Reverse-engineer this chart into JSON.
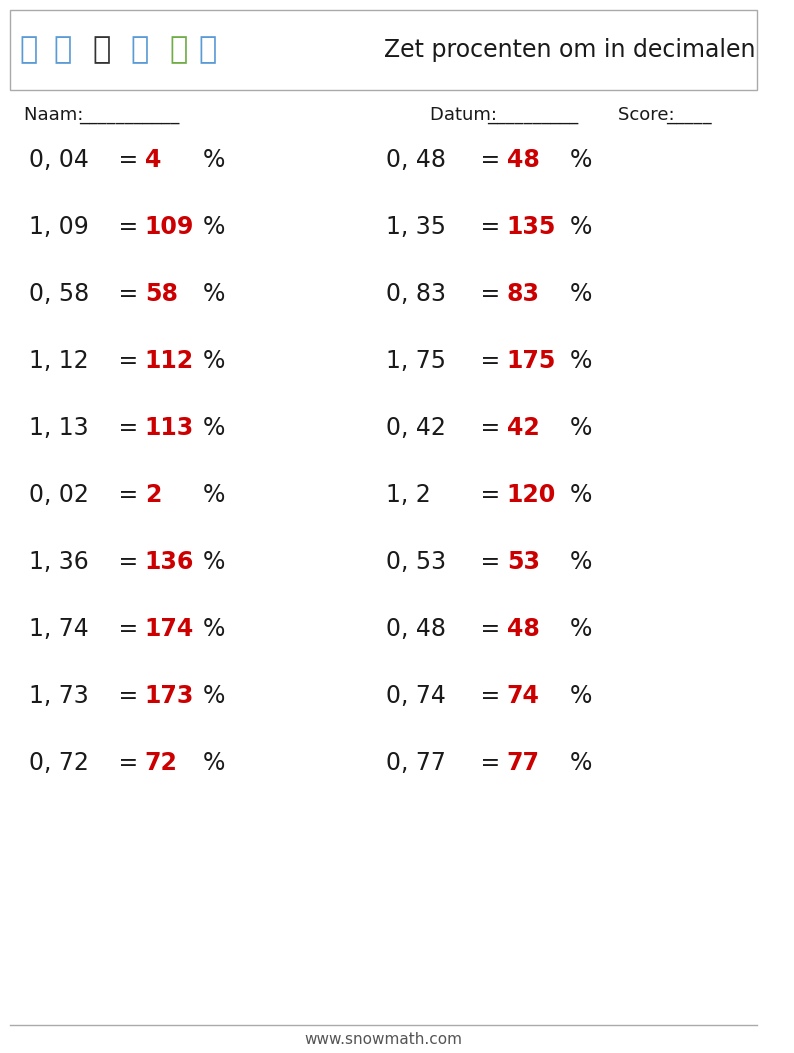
{
  "title": "Zet procenten om in decimalen",
  "naam_label": "Naam: ",
  "datum_label": "Datum: ",
  "score_label": "Score: ",
  "naam_line": "___________",
  "datum_line": "__________",
  "score_line": "_____",
  "footer": "www.snowmath.com",
  "left_questions": [
    {
      "decimal": "0, 04",
      "equals": " = ",
      "answer": "4",
      "suffix": "%"
    },
    {
      "decimal": "1, 09",
      "equals": " = ",
      "answer": "109",
      "suffix": "%"
    },
    {
      "decimal": "0, 58",
      "equals": " = ",
      "answer": "58",
      "suffix": "%"
    },
    {
      "decimal": "1, 12",
      "equals": " = ",
      "answer": "112",
      "suffix": "%"
    },
    {
      "decimal": "1, 13",
      "equals": " = ",
      "answer": "113",
      "suffix": "%"
    },
    {
      "decimal": "0, 02",
      "equals": " = ",
      "answer": "2",
      "suffix": "%"
    },
    {
      "decimal": "1, 36",
      "equals": " = ",
      "answer": "136",
      "suffix": "%"
    },
    {
      "decimal": "1, 74",
      "equals": " = ",
      "answer": "174",
      "suffix": "%"
    },
    {
      "decimal": "1, 73",
      "equals": " = ",
      "answer": "173",
      "suffix": "%"
    },
    {
      "decimal": "0, 72",
      "equals": " = ",
      "answer": "72",
      "suffix": "%"
    }
  ],
  "right_questions": [
    {
      "decimal": "0, 48",
      "equals": " = ",
      "answer": "48",
      "suffix": "%"
    },
    {
      "decimal": "1, 35",
      "equals": " = ",
      "answer": "135",
      "suffix": "%"
    },
    {
      "decimal": "0, 83",
      "equals": " = ",
      "answer": "83",
      "suffix": "%"
    },
    {
      "decimal": "1, 75",
      "equals": " = ",
      "answer": "175",
      "suffix": "%"
    },
    {
      "decimal": "0, 42",
      "equals": " = ",
      "answer": "42",
      "suffix": "%"
    },
    {
      "decimal": "1, 2",
      "equals": " = ",
      "answer": "120",
      "suffix": "%"
    },
    {
      "decimal": "0, 53",
      "equals": " = ",
      "answer": "53",
      "suffix": "%"
    },
    {
      "decimal": "0, 48",
      "equals": " = ",
      "answer": "48",
      "suffix": "%"
    },
    {
      "decimal": "0, 74",
      "equals": " = ",
      "answer": "74",
      "suffix": "%"
    },
    {
      "decimal": "0, 77",
      "equals": " = ",
      "answer": "77",
      "suffix": "%"
    }
  ],
  "answer_color": "#cc0000",
  "black_color": "#1a1a1a",
  "background_color": "#ffffff",
  "header_box_color": "#ffffff",
  "header_box_edgecolor": "#aaaaaa",
  "font_size_questions": 17,
  "font_size_header": 15,
  "font_size_meta": 13,
  "font_size_footer": 11,
  "font_size_title": 17
}
